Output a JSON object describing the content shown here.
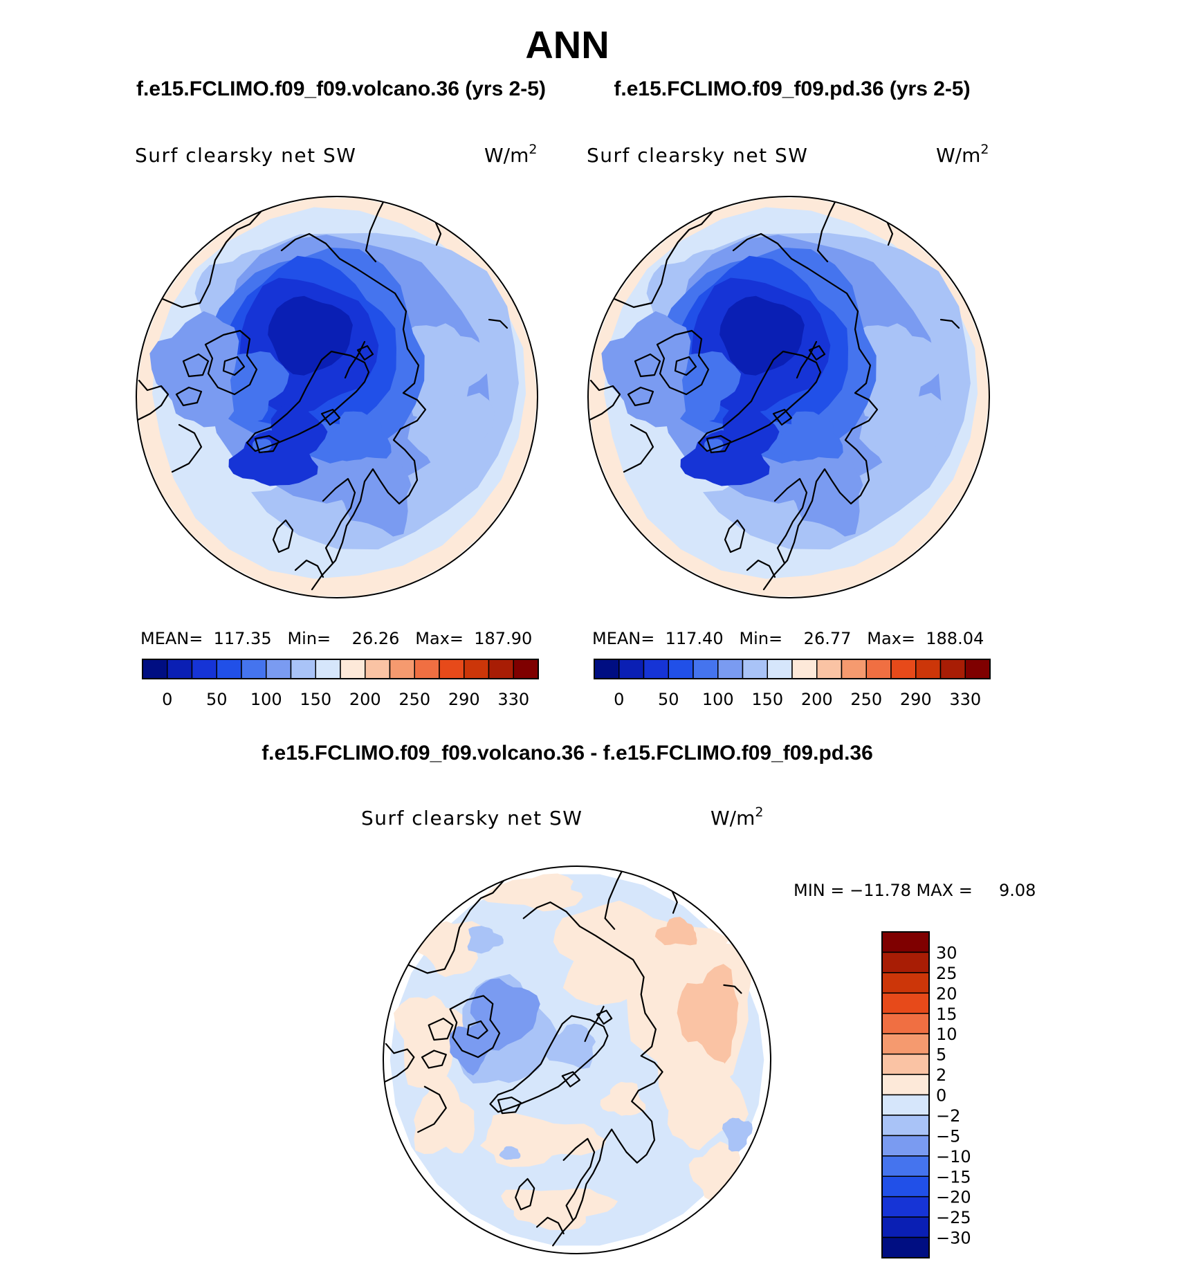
{
  "figure_title": "ANN",
  "colors": {
    "abs_scale": [
      "#000e82",
      "#0a1fb4",
      "#1634d6",
      "#2150e8",
      "#4574ee",
      "#7a9bf1",
      "#a9c3f7",
      "#d6e6fb",
      "#fde9d9",
      "#fac3a4",
      "#f59a6f",
      "#f06f42",
      "#e74a1a",
      "#cc3609",
      "#a81d05",
      "#7f0000"
    ],
    "diff_scale": [
      "#000e82",
      "#0a1fb4",
      "#1634d6",
      "#2150e8",
      "#4574ee",
      "#7a9bf1",
      "#a9c3f7",
      "#d6e6fb",
      "#fde9d9",
      "#fac3a4",
      "#f59a6f",
      "#f06f42",
      "#e74a1a",
      "#cc3609",
      "#a81d05",
      "#7f0000"
    ]
  },
  "chart_data": [
    {
      "type": "heatmap",
      "projection": "north-polar-stereographic",
      "case_title": "f.e15.FCLIMO.f09_f09.volcano.36 (yrs 2-5)",
      "variable": "Surf clearsky net SW",
      "units": "W/m",
      "units_power": "2",
      "stats_label": "MEAN=  117.35   Min=    26.26   Max=  187.90",
      "stats": {
        "mean": 117.35,
        "min": 26.26,
        "max": 187.9
      },
      "colorbar_ticks": [
        "0",
        "50",
        "100",
        "150",
        "200",
        "250",
        "290",
        "330"
      ]
    },
    {
      "type": "heatmap",
      "projection": "north-polar-stereographic",
      "case_title": "f.e15.FCLIMO.f09_f09.pd.36 (yrs 2-5)",
      "variable": "Surf clearsky net SW",
      "units": "W/m",
      "units_power": "2",
      "stats_label": "MEAN=  117.40   Min=    26.77   Max=  188.04",
      "stats": {
        "mean": 117.4,
        "min": 26.77,
        "max": 188.04
      },
      "colorbar_ticks": [
        "0",
        "50",
        "100",
        "150",
        "200",
        "250",
        "290",
        "330"
      ]
    },
    {
      "type": "heatmap",
      "projection": "north-polar-stereographic",
      "case_title": "f.e15.FCLIMO.f09_f09.volcano.36 - f.e15.FCLIMO.f09_f09.pd.36",
      "variable": "Surf clearsky net SW",
      "units": "W/m",
      "units_power": "2",
      "stats_label": "MIN = −11.78 MAX =     9.08",
      "stats": {
        "min": -11.78,
        "max": 9.08
      },
      "colorbar_ticks": [
        "30",
        "25",
        "20",
        "15",
        "10",
        "5",
        "2",
        "0",
        "−2",
        "−5",
        "−10",
        "−15",
        "−20",
        "−25",
        "−30"
      ]
    }
  ]
}
